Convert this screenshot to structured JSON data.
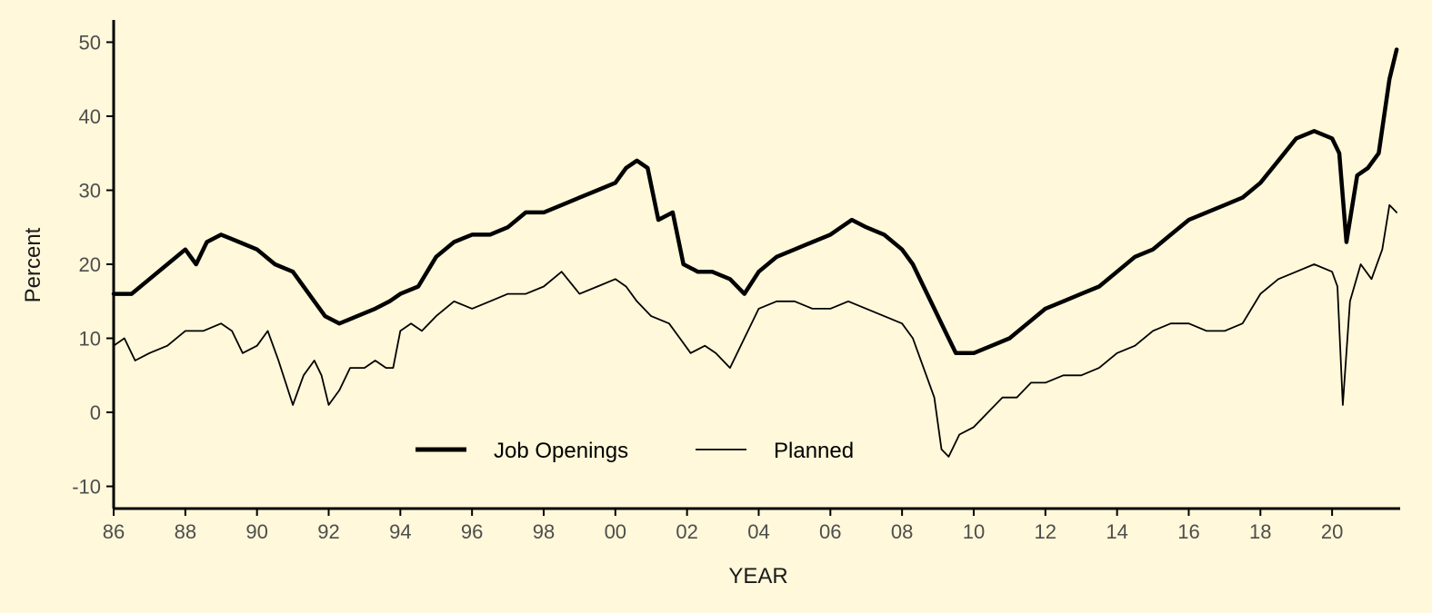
{
  "chart_data": {
    "type": "line",
    "title": "",
    "xlabel": "YEAR",
    "ylabel": "Percent",
    "x_tick_labels": [
      "86",
      "88",
      "90",
      "92",
      "94",
      "96",
      "98",
      "00",
      "02",
      "04",
      "06",
      "08",
      "10",
      "12",
      "14",
      "16",
      "18",
      "20"
    ],
    "x_tick_years": [
      1986,
      1988,
      1990,
      1992,
      1994,
      1996,
      1998,
      2000,
      2002,
      2004,
      2006,
      2008,
      2010,
      2012,
      2014,
      2016,
      2018,
      2020
    ],
    "xlim": [
      1986,
      2021.9
    ],
    "y_tick_labels": [
      "-10",
      "0",
      "10",
      "20",
      "30",
      "40",
      "50"
    ],
    "y_tick_values": [
      -10,
      0,
      10,
      20,
      30,
      40,
      50
    ],
    "ylim": [
      -13,
      53
    ],
    "grid": false,
    "legend_position": "bottom-center",
    "x_unit": "year",
    "series": [
      {
        "name": "Job Openings",
        "style": "thick",
        "color": "#000000",
        "x": [
          1986.0,
          1986.5,
          1987.0,
          1987.5,
          1988.0,
          1988.3,
          1988.6,
          1989.0,
          1989.5,
          1990.0,
          1990.5,
          1991.0,
          1991.3,
          1991.6,
          1991.9,
          1992.3,
          1992.8,
          1993.3,
          1993.7,
          1994.0,
          1994.5,
          1995.0,
          1995.5,
          1996.0,
          1996.5,
          1997.0,
          1997.5,
          1998.0,
          1998.5,
          1999.0,
          1999.5,
          2000.0,
          2000.3,
          2000.6,
          2000.9,
          2001.2,
          2001.6,
          2001.9,
          2002.3,
          2002.7,
          2003.2,
          2003.6,
          2004.0,
          2004.5,
          2005.0,
          2005.5,
          2006.0,
          2006.3,
          2006.6,
          2007.0,
          2007.5,
          2008.0,
          2008.3,
          2008.6,
          2008.9,
          2009.2,
          2009.5,
          2010.0,
          2010.5,
          2011.0,
          2011.5,
          2012.0,
          2012.5,
          2013.0,
          2013.5,
          2014.0,
          2014.5,
          2015.0,
          2015.5,
          2016.0,
          2016.5,
          2017.0,
          2017.5,
          2018.0,
          2018.5,
          2019.0,
          2019.5,
          2020.0,
          2020.2,
          2020.4,
          2020.7,
          2021.0,
          2021.3,
          2021.6,
          2021.8
        ],
        "values": [
          16,
          16,
          18,
          20,
          22,
          20,
          23,
          24,
          23,
          22,
          20,
          19,
          17,
          15,
          13,
          12,
          13,
          14,
          15,
          16,
          17,
          21,
          23,
          24,
          24,
          25,
          27,
          27,
          28,
          29,
          30,
          31,
          33,
          34,
          33,
          26,
          27,
          20,
          19,
          19,
          18,
          16,
          19,
          21,
          22,
          23,
          24,
          25,
          26,
          25,
          24,
          22,
          20,
          17,
          14,
          11,
          8,
          8,
          9,
          10,
          12,
          14,
          15,
          16,
          17,
          19,
          21,
          22,
          24,
          26,
          27,
          28,
          29,
          31,
          34,
          37,
          38,
          37,
          35,
          23,
          32,
          33,
          35,
          45,
          49
        ]
      },
      {
        "name": "Planned",
        "style": "thin",
        "color": "#000000",
        "x": [
          1986.0,
          1986.3,
          1986.6,
          1987.0,
          1987.5,
          1988.0,
          1988.5,
          1989.0,
          1989.3,
          1989.6,
          1990.0,
          1990.3,
          1990.6,
          1990.8,
          1991.0,
          1991.3,
          1991.6,
          1991.8,
          1992.0,
          1992.3,
          1992.6,
          1993.0,
          1993.3,
          1993.6,
          1993.8,
          1994.0,
          1994.3,
          1994.6,
          1995.0,
          1995.5,
          1996.0,
          1996.5,
          1997.0,
          1997.5,
          1998.0,
          1998.5,
          1999.0,
          1999.5,
          2000.0,
          2000.3,
          2000.6,
          2001.0,
          2001.5,
          2001.8,
          2002.1,
          2002.5,
          2002.8,
          2003.2,
          2003.6,
          2004.0,
          2004.5,
          2005.0,
          2005.5,
          2006.0,
          2006.5,
          2007.0,
          2007.5,
          2008.0,
          2008.3,
          2008.6,
          2008.9,
          2009.1,
          2009.3,
          2009.6,
          2010.0,
          2010.4,
          2010.8,
          2011.2,
          2011.6,
          2012.0,
          2012.5,
          2013.0,
          2013.5,
          2014.0,
          2014.5,
          2015.0,
          2015.5,
          2016.0,
          2016.5,
          2017.0,
          2017.5,
          2018.0,
          2018.5,
          2019.0,
          2019.5,
          2020.0,
          2020.15,
          2020.3,
          2020.5,
          2020.8,
          2021.1,
          2021.4,
          2021.6,
          2021.8
        ],
        "values": [
          9,
          10,
          7,
          8,
          9,
          11,
          11,
          12,
          11,
          8,
          9,
          11,
          7,
          4,
          1,
          5,
          7,
          5,
          1,
          3,
          6,
          6,
          7,
          6,
          6,
          11,
          12,
          11,
          13,
          15,
          14,
          15,
          16,
          16,
          17,
          19,
          16,
          17,
          18,
          17,
          15,
          13,
          12,
          10,
          8,
          9,
          8,
          6,
          10,
          14,
          15,
          15,
          14,
          14,
          15,
          14,
          13,
          12,
          10,
          6,
          2,
          -5,
          -6,
          -3,
          -2,
          0,
          2,
          2,
          4,
          4,
          5,
          5,
          6,
          8,
          9,
          11,
          12,
          12,
          11,
          11,
          12,
          16,
          18,
          19,
          20,
          19,
          17,
          1,
          15,
          20,
          18,
          22,
          28,
          27
        ]
      }
    ]
  }
}
